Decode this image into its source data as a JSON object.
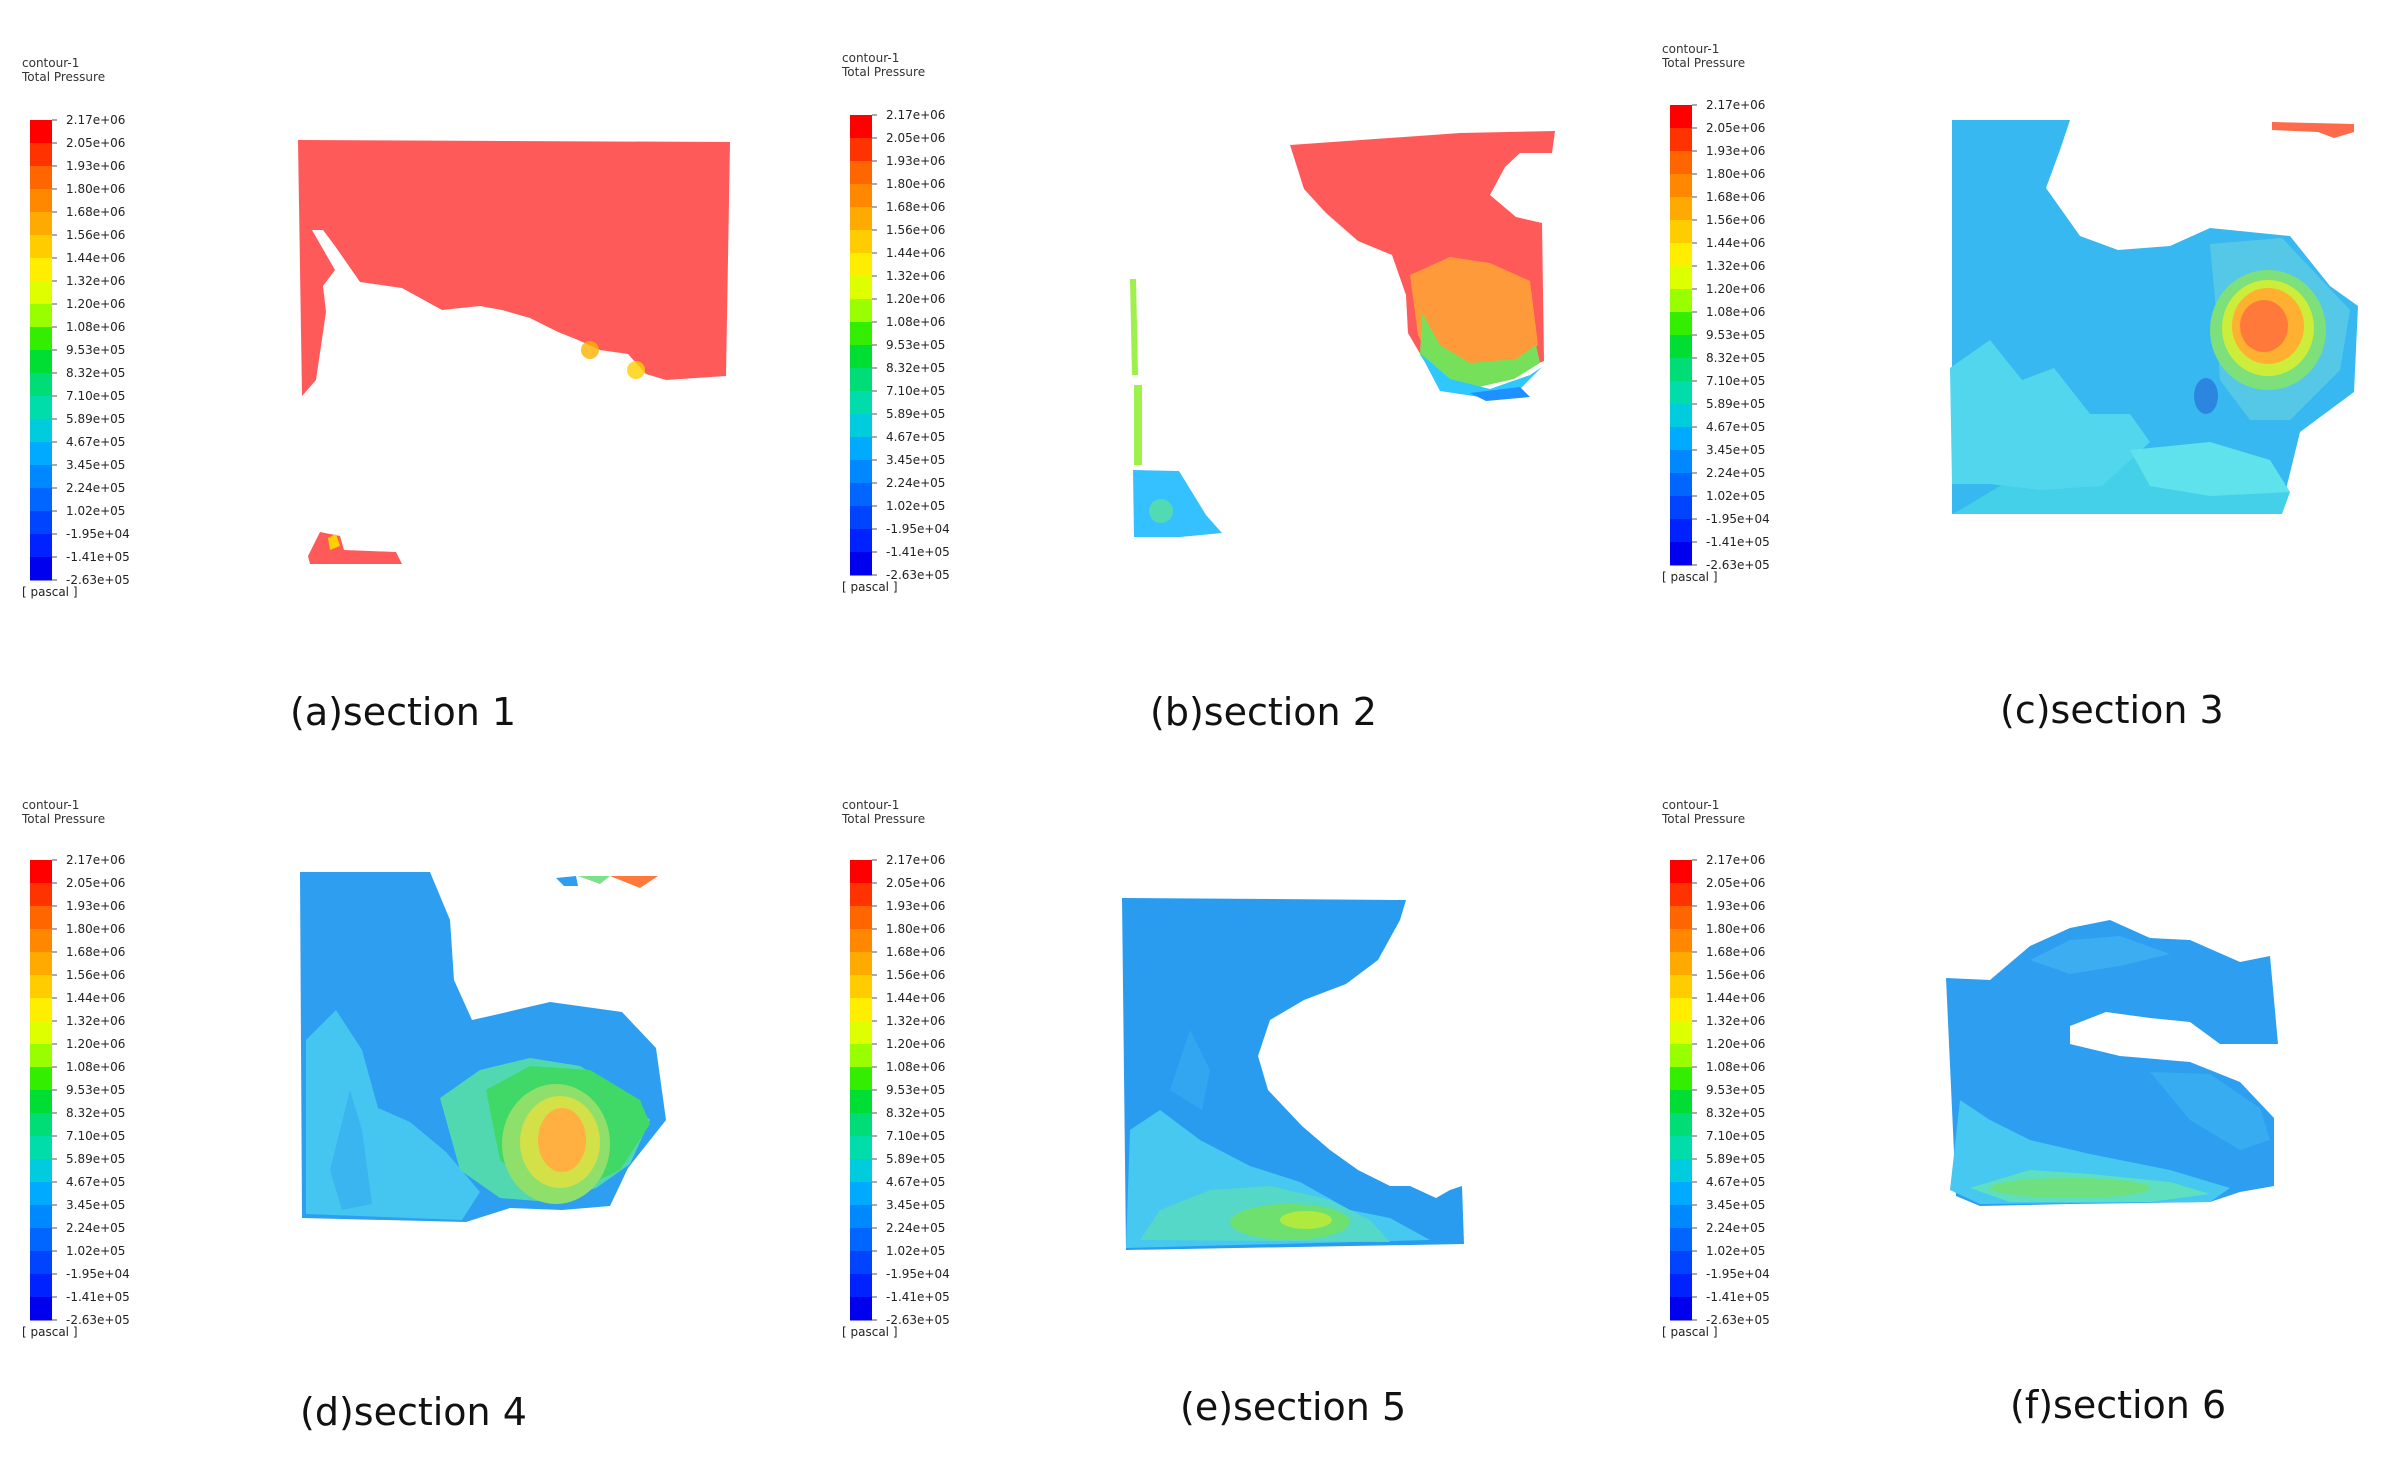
{
  "figure": {
    "colorbar": {
      "title_line1": "contour-1",
      "title_line2": "Total Pressure",
      "unit": "[ pascal ]",
      "ticks": [
        "2.17e+06",
        "2.05e+06",
        "1.93e+06",
        "1.80e+06",
        "1.68e+06",
        "1.56e+06",
        "1.44e+06",
        "1.32e+06",
        "1.20e+06",
        "1.08e+06",
        "9.53e+05",
        "8.32e+05",
        "7.10e+05",
        "5.89e+05",
        "4.67e+05",
        "3.45e+05",
        "2.24e+05",
        "1.02e+05",
        "-1.95e+04",
        "-1.41e+05",
        "-2.63e+05"
      ],
      "colors": [
        "#ff0000",
        "#ff3300",
        "#ff6600",
        "#ff8800",
        "#ffaa00",
        "#ffcc00",
        "#ffee00",
        "#ddff00",
        "#99ff00",
        "#33ee00",
        "#00dd33",
        "#00dd77",
        "#00ddaa",
        "#00ccdd",
        "#00aaff",
        "#0088ff",
        "#0066ff",
        "#0044ff",
        "#0022ff",
        "#0000ee"
      ]
    },
    "panels": [
      {
        "id": "a",
        "caption": "(a)section 1"
      },
      {
        "id": "b",
        "caption": "(b)section 2"
      },
      {
        "id": "c",
        "caption": "(c)section 3"
      },
      {
        "id": "d",
        "caption": "(d)section 4"
      },
      {
        "id": "e",
        "caption": "(e)section 5"
      },
      {
        "id": "f",
        "caption": "(f)section 6"
      }
    ]
  }
}
